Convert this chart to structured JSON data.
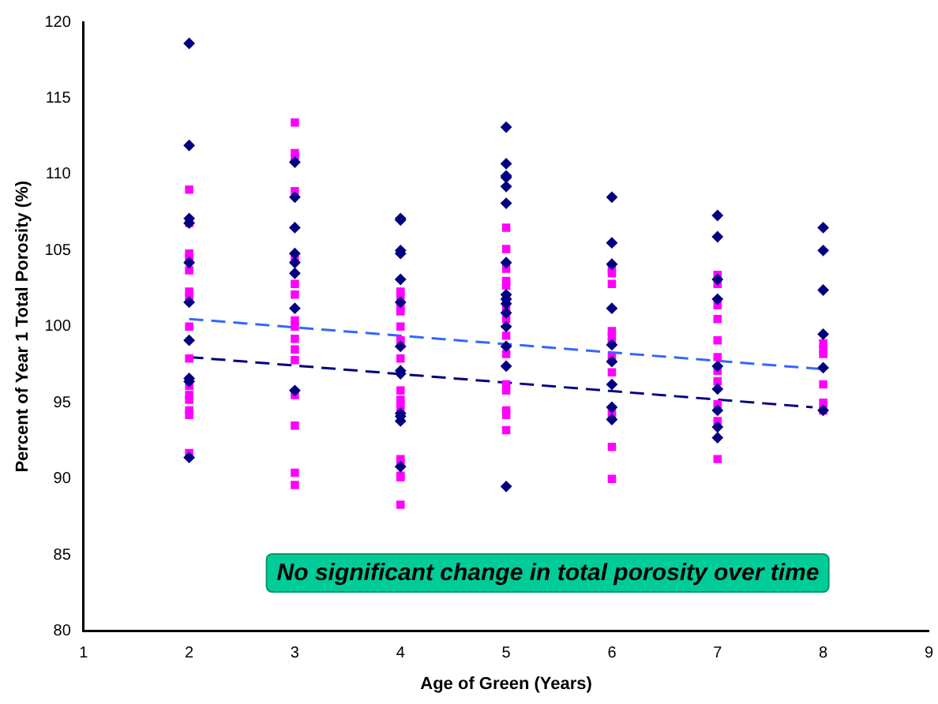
{
  "chart_data": {
    "type": "scatter",
    "xlabel": "Age of Green (Years)",
    "ylabel": "Percent of Year 1 Total Porosity (%)",
    "xlim": [
      1,
      9
    ],
    "xticks": [
      1,
      2,
      3,
      4,
      5,
      6,
      7,
      8,
      9
    ],
    "ylim": [
      80,
      120
    ],
    "yticks": [
      80,
      85,
      90,
      95,
      100,
      105,
      110,
      115,
      120
    ],
    "grid": false,
    "legend": false,
    "annotations": [
      "No significant change in total porosity over time"
    ],
    "series": [
      {
        "marker": "diamond",
        "color": "#000080",
        "x": [
          2,
          2,
          2,
          2,
          2,
          2,
          2,
          2,
          2,
          2,
          3,
          3,
          3,
          3,
          3,
          3,
          3,
          3,
          4,
          4,
          4,
          4,
          4,
          4,
          4,
          4,
          4,
          4,
          4,
          4,
          4,
          5,
          5,
          5,
          5,
          5,
          5,
          5,
          5,
          5,
          5,
          5,
          5,
          5,
          5,
          5,
          6,
          6,
          6,
          6,
          6,
          6,
          6,
          6,
          6,
          7,
          7,
          7,
          7,
          7,
          7,
          7,
          7,
          7,
          8,
          8,
          8,
          8,
          8,
          8
        ],
        "values": [
          118.6,
          111.9,
          107.1,
          106.8,
          104.2,
          101.6,
          99.1,
          96.6,
          96.4,
          91.4,
          110.8,
          108.5,
          106.5,
          104.8,
          104.2,
          103.5,
          101.2,
          95.8,
          107.1,
          107.0,
          105.0,
          104.8,
          103.1,
          101.6,
          98.7,
          97.1,
          96.9,
          94.3,
          94.1,
          93.8,
          90.8,
          113.1,
          110.7,
          109.9,
          109.8,
          109.2,
          108.1,
          104.2,
          102.1,
          101.8,
          101.5,
          100.9,
          100.0,
          98.7,
          97.4,
          89.5,
          108.5,
          105.5,
          104.1,
          101.2,
          98.8,
          97.7,
          96.2,
          94.7,
          93.9,
          107.3,
          105.9,
          103.1,
          101.8,
          97.4,
          95.9,
          94.5,
          93.4,
          92.7,
          106.5,
          105.0,
          102.4,
          99.5,
          97.3,
          94.5
        ]
      },
      {
        "marker": "square",
        "color": "#ff00ff",
        "x": [
          2,
          2,
          2,
          2,
          2,
          2,
          2,
          2,
          2,
          2,
          2,
          2,
          2,
          2,
          2,
          3,
          3,
          3,
          3,
          3,
          3,
          3,
          3,
          3,
          3,
          3,
          3,
          3,
          3,
          3,
          3,
          4,
          4,
          4,
          4,
          4,
          4,
          4,
          4,
          4,
          4,
          4,
          4,
          4,
          4,
          4,
          4,
          4,
          5,
          5,
          5,
          5,
          5,
          5,
          5,
          5,
          5,
          5,
          5,
          5,
          5,
          5,
          5,
          6,
          6,
          6,
          6,
          6,
          6,
          6,
          6,
          6,
          6,
          6,
          7,
          7,
          7,
          7,
          7,
          7,
          7,
          7,
          7,
          7,
          7,
          8,
          8,
          8,
          8,
          8,
          8
        ],
        "values": [
          109.0,
          106.8,
          104.8,
          104.5,
          103.7,
          102.3,
          101.9,
          100.0,
          97.9,
          96.1,
          95.5,
          95.2,
          94.5,
          94.2,
          91.7,
          113.4,
          111.4,
          111.1,
          108.9,
          104.5,
          102.8,
          102.1,
          100.4,
          100.0,
          99.2,
          98.5,
          97.8,
          95.5,
          93.5,
          90.4,
          89.6,
          102.3,
          102.0,
          101.3,
          101.0,
          100.0,
          99.1,
          99.0,
          97.9,
          95.8,
          95.2,
          94.9,
          94.5,
          91.3,
          91.0,
          90.2,
          90.1,
          88.3,
          106.5,
          105.1,
          103.8,
          103.0,
          102.7,
          101.9,
          101.1,
          100.5,
          99.4,
          98.2,
          96.2,
          95.8,
          94.5,
          94.2,
          93.2,
          103.8,
          103.5,
          102.8,
          99.7,
          99.4,
          99.0,
          98.0,
          97.0,
          94.3,
          92.1,
          90.0,
          103.4,
          102.8,
          101.4,
          100.5,
          99.1,
          98.0,
          97.1,
          96.4,
          94.9,
          93.8,
          91.3,
          98.9,
          98.5,
          98.2,
          96.2,
          95.0,
          94.5
        ]
      },
      {
        "type": "line",
        "marker": "none",
        "line_style": "dashed",
        "color": "#000080",
        "x": [
          2,
          7.9
        ],
        "values": [
          98.0,
          94.7
        ]
      },
      {
        "type": "line",
        "marker": "none",
        "line_style": "dashed",
        "color": "#3366ff",
        "x": [
          2,
          8
        ],
        "values": [
          100.5,
          97.2
        ]
      }
    ]
  }
}
